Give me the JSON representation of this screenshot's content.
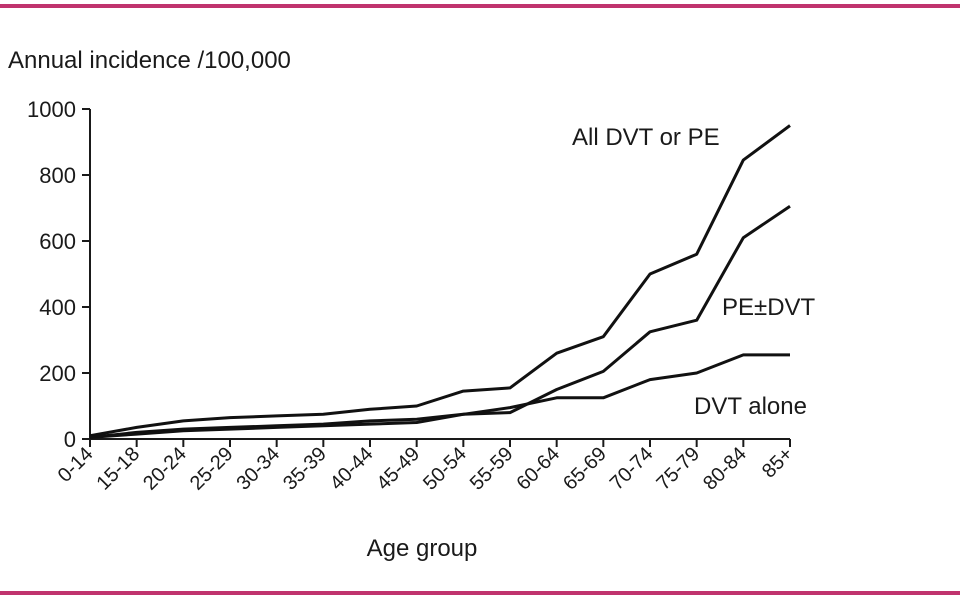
{
  "colors": {
    "rule": "#c0336e",
    "line": "#111111",
    "text": "#1a1a1a"
  },
  "chart_data": {
    "type": "line",
    "ylabel": "Annual incidence /100,000",
    "xlabel": "Age group",
    "ylim": [
      0,
      1000
    ],
    "yticks": [
      "0",
      "200",
      "400",
      "600",
      "800",
      "1000"
    ],
    "categories": [
      "0-14",
      "15-18",
      "20-24",
      "25-29",
      "30-34",
      "35-39",
      "40-44",
      "45-49",
      "50-54",
      "55-59",
      "60-64",
      "65-69",
      "70-74",
      "75-79",
      "80-84",
      "85+"
    ],
    "grid": false,
    "series": [
      {
        "name": "All DVT or PE",
        "values": [
          10,
          35,
          55,
          65,
          70,
          75,
          90,
          100,
          145,
          155,
          260,
          310,
          500,
          560,
          845,
          950
        ]
      },
      {
        "name": "PE±DVT",
        "values": [
          5,
          20,
          30,
          35,
          40,
          45,
          55,
          60,
          75,
          80,
          150,
          205,
          325,
          360,
          610,
          705
        ]
      },
      {
        "name": "DVT alone",
        "values": [
          5,
          15,
          25,
          30,
          35,
          40,
          45,
          50,
          75,
          95,
          125,
          125,
          180,
          200,
          255,
          255
        ]
      }
    ]
  }
}
